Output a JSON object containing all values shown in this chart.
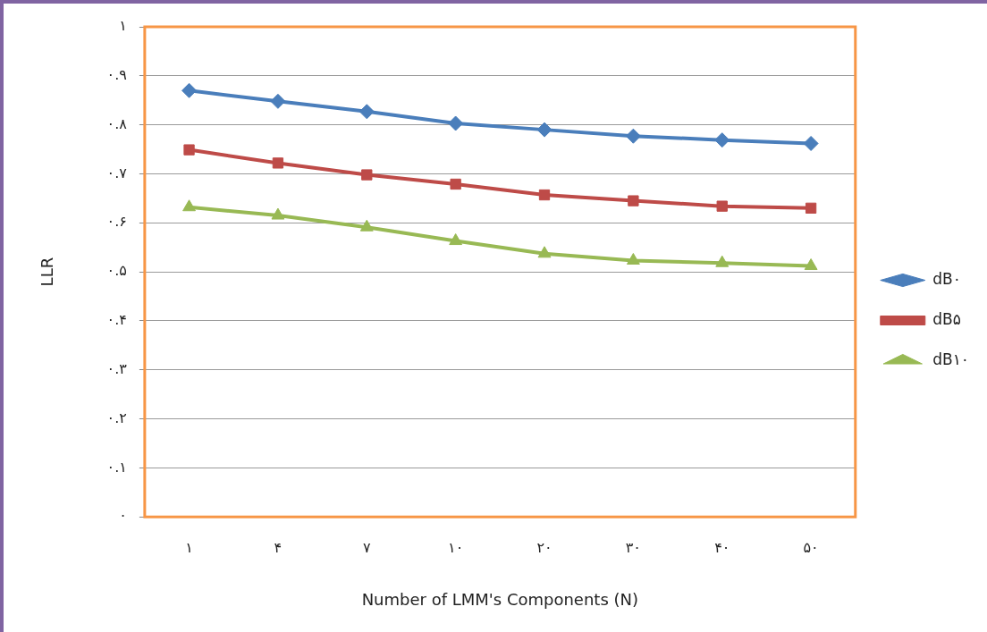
{
  "chart_data": {
    "type": "line",
    "xlabel": "Number of LMM's Components (N)",
    "ylabel": "LLR",
    "categories": [
      "۱",
      "۴",
      "۷",
      "۱۰",
      "۲۰",
      "۳۰",
      "۴۰",
      "۵۰"
    ],
    "series": [
      {
        "name": "dB۰",
        "color": "#4a7ebb",
        "marker": "diamond",
        "values": [
          0.87,
          0.848,
          0.827,
          0.803,
          0.79,
          0.777,
          0.769,
          0.762
        ]
      },
      {
        "name": "dB۵",
        "color": "#be4b48",
        "marker": "square",
        "values": [
          0.749,
          0.722,
          0.698,
          0.679,
          0.657,
          0.645,
          0.634,
          0.63
        ]
      },
      {
        "name": "dB۱۰",
        "color": "#98b954",
        "marker": "triangle",
        "values": [
          0.632,
          0.615,
          0.591,
          0.563,
          0.537,
          0.523,
          0.518,
          0.512
        ]
      }
    ],
    "ylim": [
      0,
      1
    ],
    "yticks": [
      {
        "value": 0,
        "label": "۰"
      },
      {
        "value": 0.1,
        "label": "۰.۱"
      },
      {
        "value": 0.2,
        "label": "۰.۲"
      },
      {
        "value": 0.3,
        "label": "۰.۳"
      },
      {
        "value": 0.4,
        "label": "۰.۴"
      },
      {
        "value": 0.5,
        "label": "۰.۵"
      },
      {
        "value": 0.6,
        "label": "۰.۶"
      },
      {
        "value": 0.7,
        "label": "۰.۷"
      },
      {
        "value": 0.8,
        "label": "۰.۸"
      },
      {
        "value": 0.9,
        "label": "۰.۹"
      },
      {
        "value": 1,
        "label": "۱"
      }
    ],
    "grid": "y",
    "legend": "right",
    "line_style": "solid"
  }
}
